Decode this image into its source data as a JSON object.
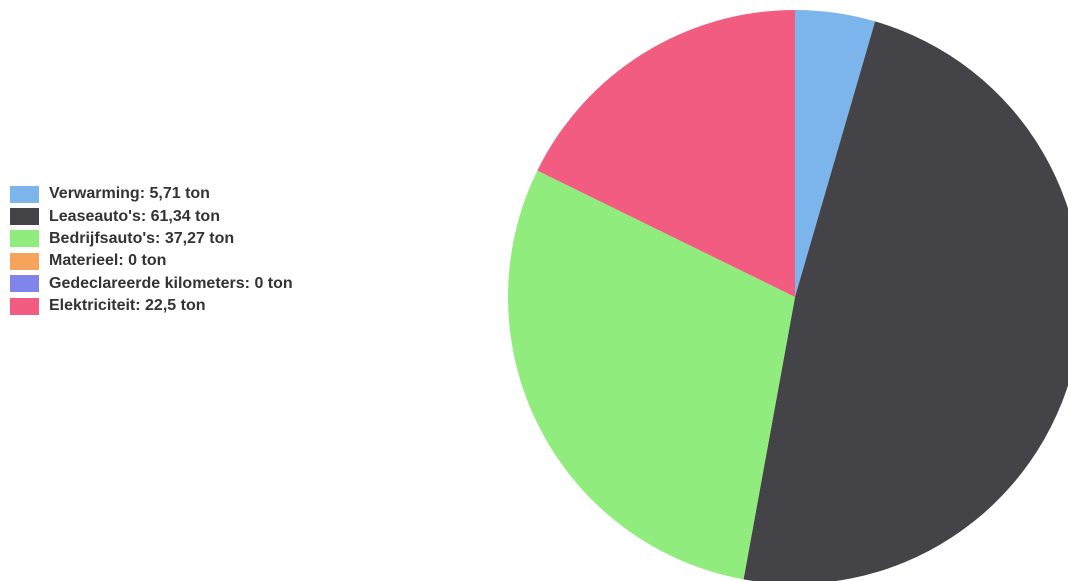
{
  "chart_data": {
    "type": "pie",
    "unit": "ton",
    "legend_position": "left",
    "series": [
      {
        "name": "Verwarming",
        "value": 5.71,
        "label": "Verwarming: 5,71 ton",
        "color": "#7cb5ec"
      },
      {
        "name": "Leaseauto's",
        "value": 61.34,
        "label": "Leaseauto's: 61,34 ton",
        "color": "#434348"
      },
      {
        "name": "Bedrijfsauto's",
        "value": 37.27,
        "label": "Bedrijfsauto's: 37,27 ton",
        "color": "#90ed7d"
      },
      {
        "name": "Materieel",
        "value": 0,
        "label": "Materieel: 0 ton",
        "color": "#f7a35c"
      },
      {
        "name": "Gedeclareerde kilometers",
        "value": 0,
        "label": "Gedeclareerde kilometers: 0 ton",
        "color": "#8085e9"
      },
      {
        "name": "Elektriciteit",
        "value": 22.5,
        "label": "Elektriciteit: 22,5 ton",
        "color": "#f15c80"
      }
    ]
  }
}
